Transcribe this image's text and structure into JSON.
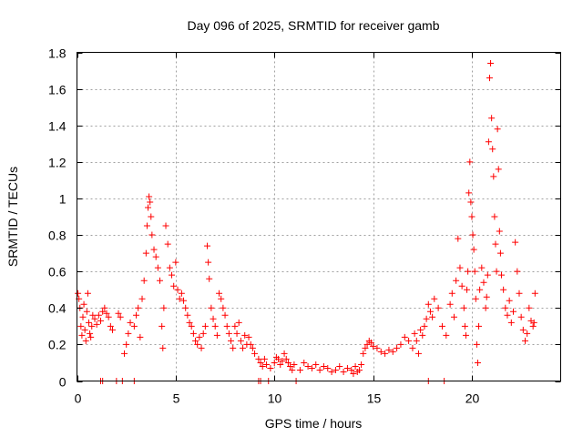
{
  "chart_data": {
    "type": "scatter",
    "title": "Day 096 of 2025, SRMTID for receiver gamb",
    "xlabel": "GPS time / hours",
    "ylabel": "SRMTID / TECUs",
    "xlim": [
      0,
      24.5
    ],
    "ylim": [
      0,
      1.8
    ],
    "x_ticks": [
      0,
      5,
      10,
      15,
      20
    ],
    "y_ticks": [
      0,
      0.2,
      0.4,
      0.6,
      0.8,
      1,
      1.2,
      1.4,
      1.6,
      1.8
    ],
    "x_tick_labels": [
      "0",
      "5",
      "10",
      "15",
      "20"
    ],
    "y_tick_labels": [
      "0",
      "0.2",
      "0.4",
      "0.6",
      "0.8",
      "1",
      "1.2",
      "1.4",
      "1.6",
      "1.8"
    ],
    "grid": true,
    "marker": "plus",
    "color": "#ff0000",
    "series": [
      {
        "name": "SRMTID",
        "points": [
          [
            0.05,
            0.48
          ],
          [
            0.1,
            0.45
          ],
          [
            0.15,
            0.4
          ],
          [
            0.2,
            0.3
          ],
          [
            0.25,
            0.25
          ],
          [
            0.3,
            0.35
          ],
          [
            0.35,
            0.42
          ],
          [
            0.4,
            0.28
          ],
          [
            0.45,
            0.22
          ],
          [
            0.5,
            0.38
          ],
          [
            0.55,
            0.48
          ],
          [
            0.6,
            0.32
          ],
          [
            0.65,
            0.26
          ],
          [
            0.7,
            0.24
          ],
          [
            0.75,
            0.3
          ],
          [
            0.8,
            0.36
          ],
          [
            0.9,
            0.34
          ],
          [
            1.0,
            0.31
          ],
          [
            1.1,
            0.36
          ],
          [
            1.2,
            0.33
          ],
          [
            1.3,
            0.38
          ],
          [
            1.4,
            0.4
          ],
          [
            1.5,
            0.37
          ],
          [
            1.6,
            0.35
          ],
          [
            1.7,
            0.3
          ],
          [
            1.8,
            0.28
          ],
          [
            2.1,
            0.37
          ],
          [
            2.2,
            0.35
          ],
          [
            2.4,
            0.15
          ],
          [
            2.5,
            0.2
          ],
          [
            2.6,
            0.26
          ],
          [
            2.7,
            0.32
          ],
          [
            2.9,
            0.3
          ],
          [
            3.0,
            0.36
          ],
          [
            3.1,
            0.4
          ],
          [
            3.2,
            0.24
          ],
          [
            3.3,
            0.45
          ],
          [
            3.4,
            0.55
          ],
          [
            3.5,
            0.7
          ],
          [
            3.55,
            0.85
          ],
          [
            3.6,
            0.95
          ],
          [
            3.65,
            1.01
          ],
          [
            3.7,
            0.98
          ],
          [
            3.75,
            0.9
          ],
          [
            3.8,
            0.8
          ],
          [
            3.9,
            0.72
          ],
          [
            4.0,
            0.68
          ],
          [
            4.1,
            0.62
          ],
          [
            4.2,
            0.55
          ],
          [
            4.3,
            0.3
          ],
          [
            4.35,
            0.18
          ],
          [
            4.4,
            0.4
          ],
          [
            4.5,
            0.85
          ],
          [
            4.6,
            0.75
          ],
          [
            4.7,
            0.62
          ],
          [
            4.8,
            0.58
          ],
          [
            4.9,
            0.52
          ],
          [
            5.0,
            0.65
          ],
          [
            5.1,
            0.5
          ],
          [
            5.2,
            0.45
          ],
          [
            5.3,
            0.48
          ],
          [
            5.4,
            0.44
          ],
          [
            5.5,
            0.4
          ],
          [
            5.6,
            0.36
          ],
          [
            5.7,
            0.32
          ],
          [
            5.8,
            0.3
          ],
          [
            5.9,
            0.26
          ],
          [
            6.0,
            0.22
          ],
          [
            6.1,
            0.2
          ],
          [
            6.2,
            0.24
          ],
          [
            6.3,
            0.18
          ],
          [
            6.4,
            0.26
          ],
          [
            6.5,
            0.3
          ],
          [
            6.6,
            0.74
          ],
          [
            6.65,
            0.65
          ],
          [
            6.7,
            0.56
          ],
          [
            6.8,
            0.4
          ],
          [
            6.9,
            0.34
          ],
          [
            7.0,
            0.3
          ],
          [
            7.1,
            0.25
          ],
          [
            7.2,
            0.48
          ],
          [
            7.3,
            0.45
          ],
          [
            7.4,
            0.4
          ],
          [
            7.5,
            0.36
          ],
          [
            7.6,
            0.3
          ],
          [
            7.7,
            0.26
          ],
          [
            7.8,
            0.22
          ],
          [
            7.9,
            0.18
          ],
          [
            8.0,
            0.3
          ],
          [
            8.1,
            0.26
          ],
          [
            8.2,
            0.32
          ],
          [
            8.3,
            0.22
          ],
          [
            8.4,
            0.18
          ],
          [
            8.5,
            0.25
          ],
          [
            8.6,
            0.2
          ],
          [
            8.7,
            0.24
          ],
          [
            8.8,
            0.2
          ],
          [
            8.9,
            0.18
          ],
          [
            9.0,
            0.15
          ],
          [
            9.2,
            0.12
          ],
          [
            9.3,
            0.1
          ],
          [
            9.4,
            0.08
          ],
          [
            9.5,
            0.12
          ],
          [
            9.6,
            0.09
          ],
          [
            9.8,
            0.07
          ],
          [
            10.0,
            0.1
          ],
          [
            10.1,
            0.13
          ],
          [
            10.2,
            0.12
          ],
          [
            10.3,
            0.09
          ],
          [
            10.4,
            0.11
          ],
          [
            10.5,
            0.15
          ],
          [
            10.6,
            0.12
          ],
          [
            10.7,
            0.1
          ],
          [
            10.8,
            0.08
          ],
          [
            10.9,
            0.06
          ],
          [
            11.0,
            0.09
          ],
          [
            11.3,
            0.06
          ],
          [
            11.5,
            0.1
          ],
          [
            11.7,
            0.08
          ],
          [
            11.9,
            0.07
          ],
          [
            12.1,
            0.09
          ],
          [
            12.3,
            0.06
          ],
          [
            12.5,
            0.08
          ],
          [
            12.7,
            0.07
          ],
          [
            12.9,
            0.05
          ],
          [
            13.1,
            0.06
          ],
          [
            13.3,
            0.08
          ],
          [
            13.5,
            0.05
          ],
          [
            13.7,
            0.07
          ],
          [
            13.9,
            0.06
          ],
          [
            14.0,
            0.04
          ],
          [
            14.1,
            0.08
          ],
          [
            14.2,
            0.05
          ],
          [
            14.3,
            0.06
          ],
          [
            14.4,
            0.09
          ],
          [
            14.5,
            0.15
          ],
          [
            14.6,
            0.18
          ],
          [
            14.7,
            0.2
          ],
          [
            14.8,
            0.22
          ],
          [
            14.9,
            0.21
          ],
          [
            15.0,
            0.19
          ],
          [
            15.2,
            0.18
          ],
          [
            15.4,
            0.16
          ],
          [
            15.6,
            0.15
          ],
          [
            15.8,
            0.17
          ],
          [
            16.0,
            0.16
          ],
          [
            16.2,
            0.18
          ],
          [
            16.4,
            0.2
          ],
          [
            16.6,
            0.24
          ],
          [
            16.8,
            0.22
          ],
          [
            17.0,
            0.18
          ],
          [
            17.1,
            0.26
          ],
          [
            17.2,
            0.22
          ],
          [
            17.3,
            0.15
          ],
          [
            17.4,
            0.28
          ],
          [
            17.5,
            0.25
          ],
          [
            17.6,
            0.3
          ],
          [
            17.7,
            0.34
          ],
          [
            17.8,
            0.42
          ],
          [
            17.9,
            0.38
          ],
          [
            18.0,
            0.35
          ],
          [
            18.1,
            0.45
          ],
          [
            18.3,
            0.4
          ],
          [
            18.5,
            0.3
          ],
          [
            18.7,
            0.25
          ],
          [
            18.9,
            0.42
          ],
          [
            19.0,
            0.48
          ],
          [
            19.1,
            0.35
          ],
          [
            19.2,
            0.55
          ],
          [
            19.3,
            0.78
          ],
          [
            19.4,
            0.62
          ],
          [
            19.5,
            0.52
          ],
          [
            19.6,
            0.4
          ],
          [
            19.65,
            0.3
          ],
          [
            19.7,
            0.25
          ],
          [
            19.75,
            0.5
          ],
          [
            19.8,
            0.6
          ],
          [
            19.85,
            1.03
          ],
          [
            19.9,
            1.2
          ],
          [
            19.95,
            0.98
          ],
          [
            20.0,
            0.9
          ],
          [
            20.05,
            0.8
          ],
          [
            20.1,
            0.72
          ],
          [
            20.15,
            0.6
          ],
          [
            20.2,
            0.45
          ],
          [
            20.25,
            0.2
          ],
          [
            20.3,
            0.1
          ],
          [
            20.35,
            0.3
          ],
          [
            20.4,
            0.5
          ],
          [
            20.5,
            0.62
          ],
          [
            20.6,
            0.54
          ],
          [
            20.7,
            0.4
          ],
          [
            20.75,
            0.46
          ],
          [
            20.8,
            0.58
          ],
          [
            20.85,
            1.31
          ],
          [
            20.9,
            1.66
          ],
          [
            20.95,
            1.74
          ],
          [
            21.0,
            1.44
          ],
          [
            21.05,
            1.27
          ],
          [
            21.1,
            1.12
          ],
          [
            21.15,
            0.9
          ],
          [
            21.2,
            0.75
          ],
          [
            21.25,
            0.6
          ],
          [
            21.3,
            1.38
          ],
          [
            21.35,
            1.16
          ],
          [
            21.4,
            0.82
          ],
          [
            21.45,
            0.7
          ],
          [
            21.5,
            0.58
          ],
          [
            21.6,
            0.5
          ],
          [
            21.7,
            0.4
          ],
          [
            21.8,
            0.36
          ],
          [
            21.9,
            0.44
          ],
          [
            22.0,
            0.32
          ],
          [
            22.1,
            0.38
          ],
          [
            22.2,
            0.76
          ],
          [
            22.3,
            0.6
          ],
          [
            22.4,
            0.48
          ],
          [
            22.5,
            0.35
          ],
          [
            22.6,
            0.28
          ],
          [
            22.7,
            0.22
          ],
          [
            22.8,
            0.26
          ],
          [
            22.9,
            0.4
          ],
          [
            23.0,
            0.33
          ],
          [
            23.1,
            0.3
          ],
          [
            23.15,
            0.32
          ],
          [
            23.2,
            0.48
          ],
          [
            1.2,
            0.0
          ],
          [
            1.3,
            0.0
          ],
          [
            2.0,
            0.0
          ],
          [
            2.3,
            0.0
          ],
          [
            2.9,
            0.0
          ],
          [
            9.2,
            0.0
          ],
          [
            9.3,
            0.0
          ],
          [
            9.7,
            0.0
          ],
          [
            11.1,
            0.0
          ],
          [
            17.8,
            0.0
          ],
          [
            18.6,
            0.0
          ]
        ]
      }
    ]
  }
}
